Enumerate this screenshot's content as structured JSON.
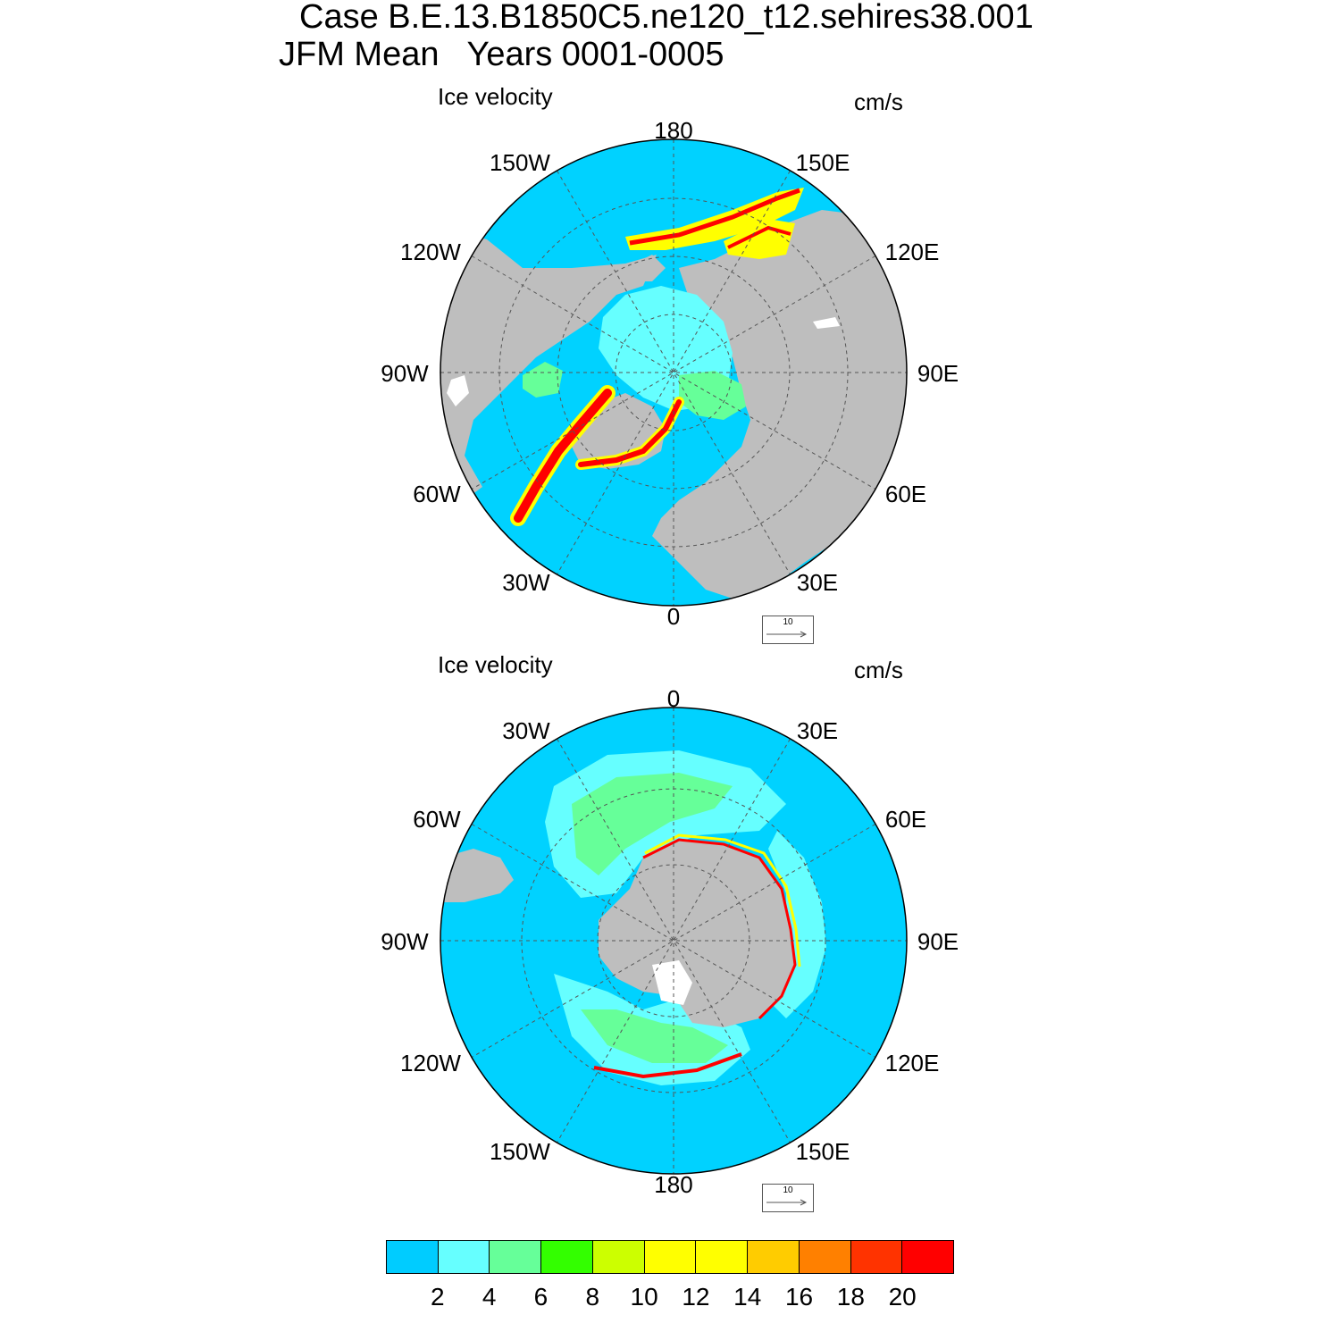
{
  "figure": {
    "title_line1": "Case B.E.13.B1850C5.ne120_t12.sehires38.001",
    "title_line2": "JFM Mean   Years 0001-0005"
  },
  "panels": [
    {
      "name": "north",
      "left_label": "Ice velocity",
      "right_label": "cm/s",
      "lon_labels": [
        "180",
        "150E",
        "120E",
        "90E",
        "60E",
        "30E",
        "0",
        "30W",
        "60W",
        "90W",
        "120W",
        "150W"
      ],
      "reference_vector": "10"
    },
    {
      "name": "south",
      "left_label": "Ice velocity",
      "right_label": "cm/s",
      "lon_labels": [
        "0",
        "30E",
        "60E",
        "90E",
        "120E",
        "150E",
        "180",
        "150W",
        "120W",
        "90W",
        "60W",
        "30W"
      ],
      "reference_vector": "10"
    }
  ],
  "colorbar": {
    "labels": [
      "2",
      "4",
      "6",
      "8",
      "10",
      "12",
      "14",
      "16",
      "18",
      "20"
    ],
    "colors": [
      "#00ccff",
      "#66ffff",
      "#66ff99",
      "#33ff00",
      "#ccff00",
      "#ffff00",
      "#ffff00",
      "#ffcc00",
      "#ff8000",
      "#ff3300",
      "#ff0000"
    ]
  },
  "map_colors": {
    "ocean": "#00d2ff",
    "land": "#bebebe",
    "grid": "#555555"
  }
}
